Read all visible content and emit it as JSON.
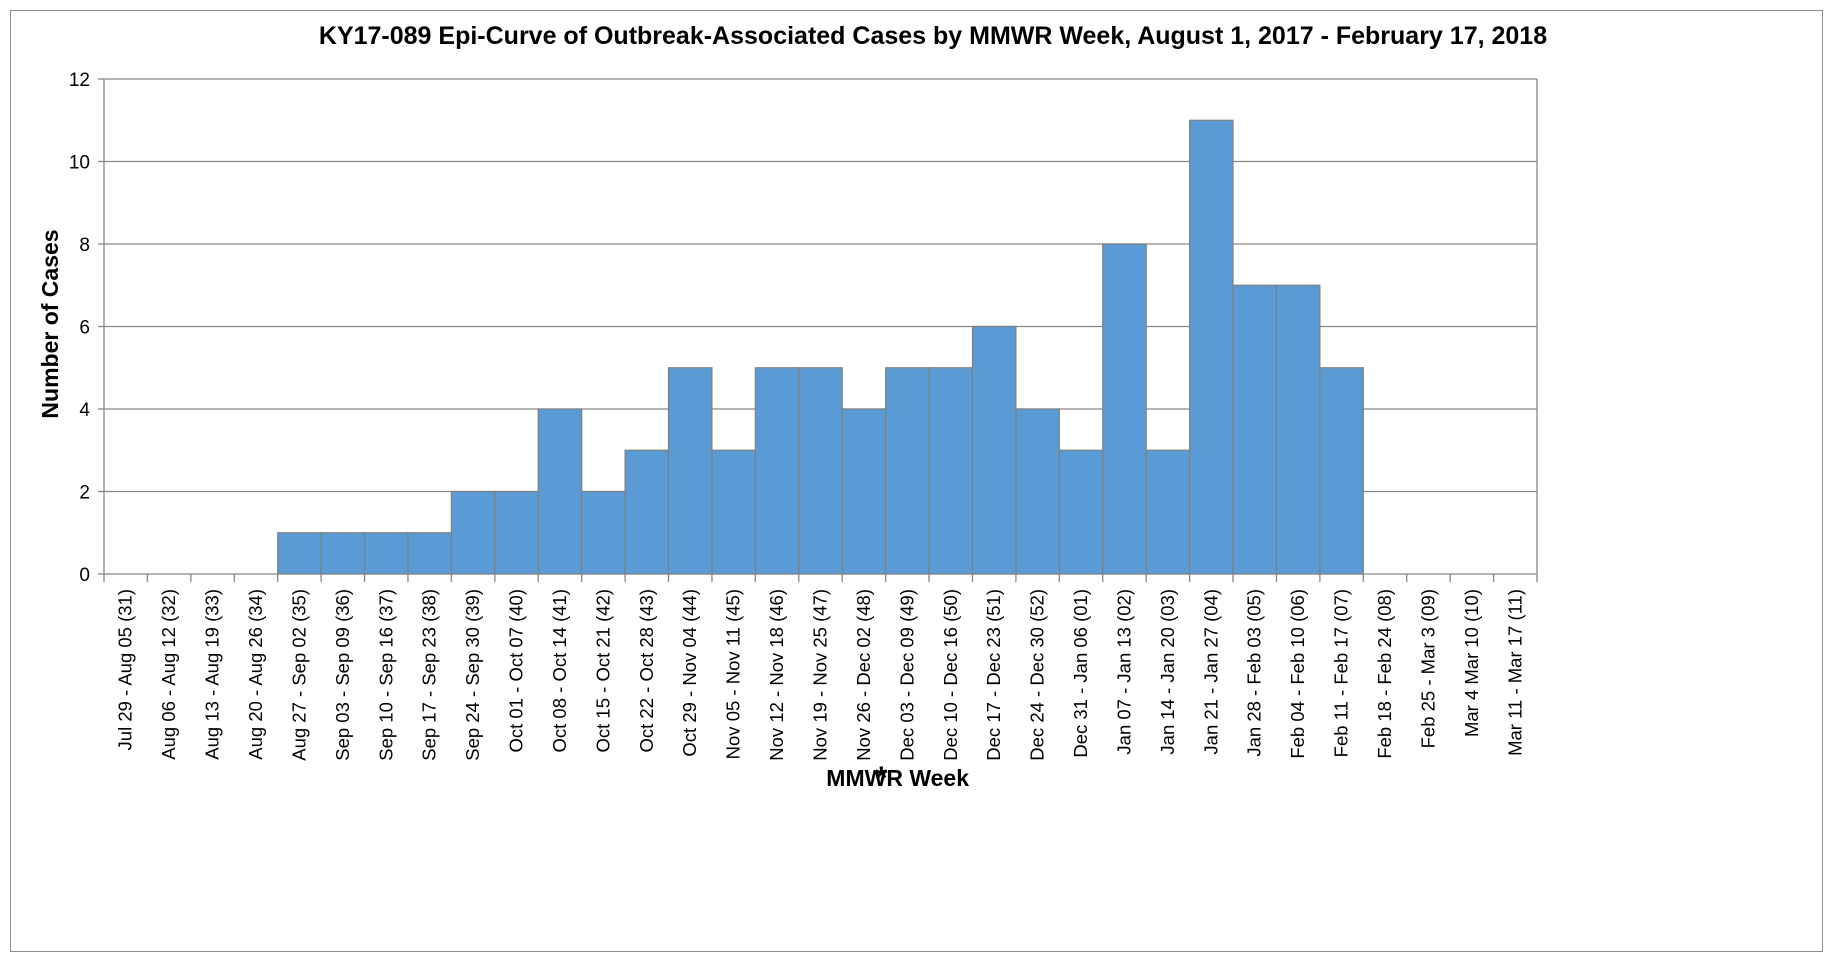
{
  "chart_data": {
    "type": "bar",
    "title": "KY17-089 Epi-Curve of Outbreak-Associated Cases by MMWR Week, August 1, 2017 - February 17, 2018",
    "xlabel": "MMWR Week",
    "xlabel_marker": "*",
    "ylabel": "Number of Cases",
    "ylim": [
      0,
      12
    ],
    "yticks": [
      0,
      2,
      4,
      6,
      8,
      10,
      12
    ],
    "grid": true,
    "legend": "none",
    "bar_color": "#5b9bd5",
    "categories": [
      "Jul 29 - Aug 05 (31)",
      "Aug 06 - Aug 12 (32)",
      "Aug 13 - Aug 19 (33)",
      "Aug 20 - Aug 26 (34)",
      "Aug 27 - Sep 02 (35)",
      "Sep 03 - Sep 09 (36)",
      "Sep 10 - Sep 16 (37)",
      "Sep 17 - Sep 23 (38)",
      "Sep 24 - Sep 30 (39)",
      "Oct 01 - Oct 07 (40)",
      "Oct 08 - Oct 14 (41)",
      "Oct 15 - Oct 21 (42)",
      "Oct 22 - Oct 28 (43)",
      "Oct 29 - Nov 04 (44)",
      "Nov 05 - Nov 11 (45)",
      "Nov 12 - Nov 18 (46)",
      "Nov 19 - Nov 25 (47)",
      "Nov 26 - Dec 02 (48)",
      "Dec 03 - Dec 09 (49)",
      "Dec 10 - Dec 16 (50)",
      "Dec 17 - Dec 23 (51)",
      "Dec 24 - Dec 30 (52)",
      "Dec 31 - Jan 06 (01)",
      "Jan 07 - Jan 13 (02)",
      "Jan 14 - Jan 20 (03)",
      "Jan 21 - Jan 27 (04)",
      "Jan 28 - Feb 03 (05)",
      "Feb 04 - Feb 10 (06)",
      "Feb 11 - Feb 17 (07)",
      "Feb 18 - Feb 24 (08)",
      "Feb 25 - Mar 3 (09)",
      "Mar 4 Mar 10 (10)",
      "Mar 11 - Mar 17 (11)"
    ],
    "values": [
      0,
      0,
      0,
      0,
      1,
      1,
      1,
      1,
      2,
      2,
      4,
      2,
      3,
      5,
      3,
      5,
      5,
      4,
      5,
      5,
      6,
      4,
      3,
      8,
      3,
      11,
      7,
      7,
      5,
      0,
      0,
      0,
      0
    ]
  }
}
